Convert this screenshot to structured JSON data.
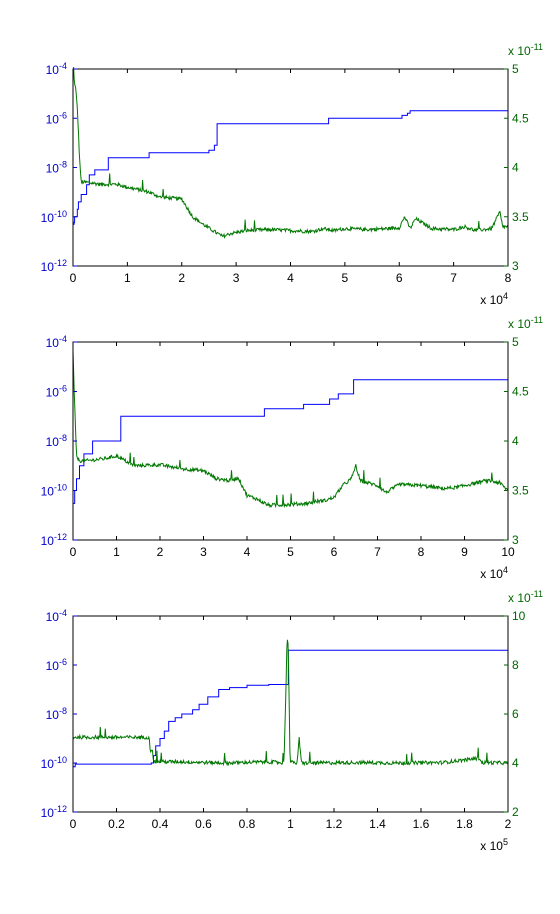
{
  "colors": {
    "left_axis": "#0000cc",
    "right_axis": "#006600",
    "series_blue": "#0000ff",
    "series_green": "#007700"
  },
  "chart_data": [
    {
      "type": "line",
      "x_multiplier_label": {
        "base": "x 10",
        "exp": "4"
      },
      "right_multiplier_label": {
        "base": "x 10",
        "exp": "-11"
      },
      "xlim": [
        0,
        80000
      ],
      "x_ticks": [
        "0",
        "1",
        "2",
        "3",
        "4",
        "5",
        "6",
        "7",
        "8"
      ],
      "left_axis": {
        "scale": "log",
        "ylim": [
          1e-12,
          0.0001
        ],
        "ticks": [
          {
            "base": "10",
            "exp": "-12"
          },
          {
            "base": "10",
            "exp": "-10"
          },
          {
            "base": "10",
            "exp": "-8"
          },
          {
            "base": "10",
            "exp": "-6"
          },
          {
            "base": "10",
            "exp": "-4"
          }
        ]
      },
      "right_axis": {
        "scale": "linear",
        "ylim": [
          3,
          5
        ],
        "ticks": [
          "3",
          "3.5",
          "4",
          "4.5",
          "5"
        ]
      },
      "series": [
        {
          "axis": "left",
          "style": "step",
          "color": "#0000ff",
          "x": [
            0,
            200,
            300,
            800,
            1000,
            1500,
            2500,
            3000,
            4000,
            6500,
            14000,
            25000,
            26000,
            26500,
            47000,
            60500,
            61500,
            62000,
            80000
          ],
          "y": [
            5e-11,
            6e-11,
            1e-10,
            2e-10,
            4e-10,
            8e-10,
            2e-09,
            5e-09,
            8e-09,
            2.5e-08,
            4e-08,
            5e-08,
            8e-08,
            6e-07,
            1e-06,
            1.3e-06,
            1.6e-06,
            2e-06,
            2.3e-06
          ]
        },
        {
          "axis": "right",
          "style": "noisy",
          "color": "#007700",
          "x": [
            0,
            500,
            800,
            1200,
            1500,
            2500,
            5000,
            8000,
            10000,
            14000,
            16000,
            20000,
            22000,
            24000,
            26000,
            27500,
            29000,
            32000,
            36000,
            40000,
            44000,
            46000,
            48000,
            50000,
            54000,
            58000,
            60000,
            61000,
            62000,
            63000,
            66000,
            70000,
            72000,
            74000,
            77000,
            78500,
            79000,
            80000
          ],
          "y": [
            4.95,
            4.8,
            4.6,
            4.1,
            3.85,
            3.85,
            3.83,
            3.83,
            3.8,
            3.75,
            3.7,
            3.68,
            3.5,
            3.42,
            3.35,
            3.3,
            3.33,
            3.36,
            3.37,
            3.36,
            3.35,
            3.38,
            3.36,
            3.38,
            3.37,
            3.38,
            3.39,
            3.5,
            3.38,
            3.48,
            3.38,
            3.37,
            3.4,
            3.36,
            3.38,
            3.55,
            3.4,
            3.4
          ]
        }
      ]
    },
    {
      "type": "line",
      "x_multiplier_label": {
        "base": "x 10",
        "exp": "4"
      },
      "right_multiplier_label": {
        "base": "x 10",
        "exp": "-11"
      },
      "xlim": [
        0,
        100000
      ],
      "x_ticks": [
        "0",
        "1",
        "2",
        "3",
        "4",
        "5",
        "6",
        "7",
        "8",
        "9",
        "10"
      ],
      "left_axis": {
        "scale": "log",
        "ylim": [
          1e-12,
          0.0001
        ],
        "ticks": [
          {
            "base": "10",
            "exp": "-12"
          },
          {
            "base": "10",
            "exp": "-10"
          },
          {
            "base": "10",
            "exp": "-8"
          },
          {
            "base": "10",
            "exp": "-6"
          },
          {
            "base": "10",
            "exp": "-4"
          }
        ]
      },
      "right_axis": {
        "scale": "linear",
        "ylim": [
          3,
          5
        ],
        "ticks": [
          "3",
          "3.5",
          "4",
          "4.5",
          "5"
        ]
      },
      "series": [
        {
          "axis": "left",
          "style": "step",
          "color": "#0000ff",
          "x": [
            0,
            400,
            800,
            1500,
            2500,
            4500,
            11000,
            44000,
            53000,
            59000,
            61000,
            64500,
            100000
          ],
          "y": [
            3e-11,
            1e-10,
            3e-10,
            1e-09,
            3e-09,
            1e-08,
            1e-07,
            2e-07,
            3e-07,
            5e-07,
            8e-07,
            3e-06,
            3e-06
          ]
        },
        {
          "axis": "right",
          "style": "noisy",
          "color": "#007700",
          "x": [
            0,
            500,
            800,
            1500,
            3000,
            7000,
            10000,
            14000,
            20000,
            25000,
            30000,
            33000,
            36000,
            38000,
            40000,
            42000,
            45000,
            50000,
            54000,
            56000,
            58000,
            60000,
            62000,
            64000,
            65000,
            66000,
            70000,
            72000,
            75000,
            80000,
            85000,
            88000,
            90000,
            95000,
            98000,
            100000
          ],
          "y": [
            4.9,
            4.2,
            3.85,
            3.8,
            3.8,
            3.82,
            3.85,
            3.75,
            3.76,
            3.72,
            3.7,
            3.62,
            3.6,
            3.63,
            3.45,
            3.42,
            3.35,
            3.36,
            3.37,
            3.39,
            3.4,
            3.43,
            3.55,
            3.62,
            3.75,
            3.6,
            3.55,
            3.48,
            3.56,
            3.55,
            3.52,
            3.53,
            3.55,
            3.6,
            3.58,
            3.5
          ]
        }
      ]
    },
    {
      "type": "line",
      "x_multiplier_label": {
        "base": "x 10",
        "exp": "5"
      },
      "right_multiplier_label": {
        "base": "x 10",
        "exp": "-11"
      },
      "xlim": [
        0,
        200000
      ],
      "x_ticks": [
        "0",
        "0.2",
        "0.4",
        "0.6",
        "0.8",
        "1",
        "1.2",
        "1.4",
        "1.6",
        "1.8",
        "2"
      ],
      "left_axis": {
        "scale": "log",
        "ylim": [
          1e-12,
          0.0001
        ],
        "ticks": [
          {
            "base": "10",
            "exp": "-12"
          },
          {
            "base": "10",
            "exp": "-10"
          },
          {
            "base": "10",
            "exp": "-8"
          },
          {
            "base": "10",
            "exp": "-6"
          },
          {
            "base": "10",
            "exp": "-4"
          }
        ]
      },
      "right_axis": {
        "scale": "linear",
        "ylim": [
          2,
          10
        ],
        "ticks": [
          "2",
          "4",
          "6",
          "8",
          "10"
        ]
      },
      "series": [
        {
          "axis": "left",
          "style": "step",
          "color": "#0000ff",
          "x": [
            0,
            1000,
            36000,
            37000,
            38000,
            40000,
            42000,
            44000,
            47000,
            50000,
            55000,
            58000,
            62000,
            67000,
            72000,
            80000,
            90000,
            99000,
            200000
          ],
          "y": [
            7e-11,
            9e-11,
            1e-10,
            2e-10,
            5e-10,
            1e-09,
            2e-09,
            5e-09,
            7e-09,
            1e-08,
            1.5e-08,
            2.5e-08,
            5e-08,
            1e-07,
            1.2e-07,
            1.5e-07,
            1.6e-07,
            4e-06,
            4e-06
          ]
        },
        {
          "axis": "right",
          "style": "noisy",
          "color": "#007700",
          "x": [
            0,
            35000,
            35500,
            36500,
            37000,
            50000,
            70000,
            90000,
            97000,
            98500,
            99000,
            99800,
            100500,
            101000,
            103000,
            104000,
            105000,
            110000,
            130000,
            150000,
            170000,
            187000,
            188000,
            190000,
            200000
          ],
          "y": [
            5.05,
            5.05,
            4.5,
            4.6,
            4.05,
            4.05,
            4.0,
            4.05,
            4.0,
            9.0,
            8.8,
            4.0,
            4.1,
            4.0,
            4.0,
            5.0,
            4.0,
            4.0,
            4.02,
            4.0,
            4.02,
            4.2,
            4.0,
            4.02,
            4.0
          ]
        }
      ]
    }
  ]
}
